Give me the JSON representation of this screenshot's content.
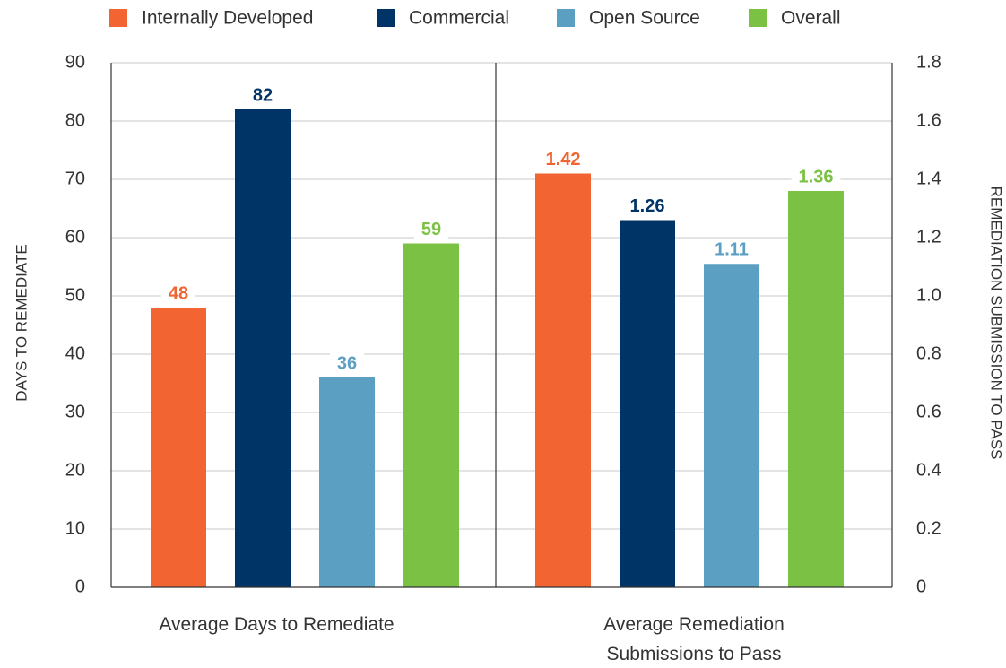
{
  "chart_data": [
    {
      "type": "bar",
      "categories": [
        "Average Days to Remediate"
      ],
      "series": [
        {
          "name": "Internally Developed",
          "color": "#f26532",
          "values": [
            48
          ]
        },
        {
          "name": "Commercial",
          "color": "#003366",
          "values": [
            82
          ]
        },
        {
          "name": "Open Source",
          "color": "#5b9fc2",
          "values": [
            36
          ]
        },
        {
          "name": "Overall",
          "color": "#7bc143",
          "values": [
            59
          ]
        }
      ],
      "ylabel": "DAYS TO REMEDIATE",
      "ylim": [
        0,
        90
      ],
      "yticks": [
        0,
        10,
        20,
        30,
        40,
        50,
        60,
        70,
        80,
        90
      ],
      "grid": true
    },
    {
      "type": "bar",
      "categories": [
        "Average Remediation Submissions to Pass"
      ],
      "series": [
        {
          "color": "#f26532",
          "values": [
            1.42
          ],
          "axis": "y2"
        },
        {
          "color": "#003366",
          "values": [
            1.26
          ],
          "axis": "y2"
        },
        {
          "color": "#5b9fc2",
          "values": [
            1.11
          ],
          "axis": "y2"
        },
        {
          "color": "#7bc143",
          "values": [
            1.36
          ],
          "axis": "y2"
        }
      ],
      "y2label": "REMEDIATION SUBMISSION TO PASS",
      "y2lim": [
        0,
        1.8
      ],
      "y2ticks": [
        0,
        0.2,
        0.4,
        0.6,
        0.8,
        {
          "value": 1,
          "label": "1.0"
        },
        1.2,
        1.4,
        1.6,
        1.8
      ],
      "grid": true
    }
  ]
}
